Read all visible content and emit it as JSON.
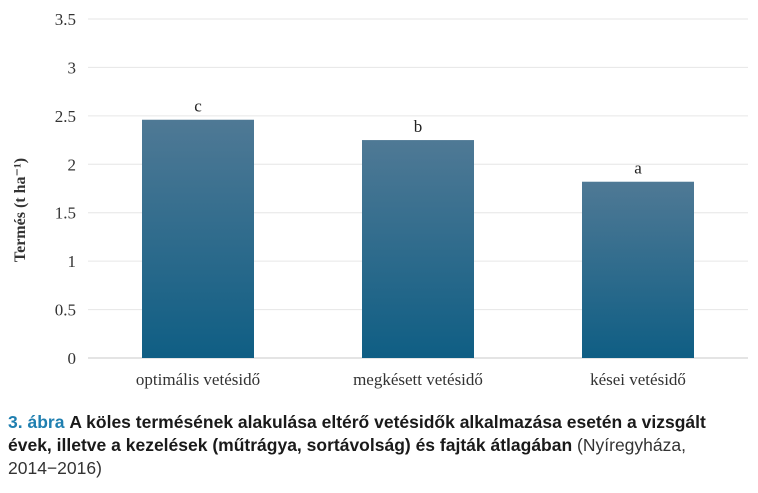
{
  "chart_data": {
    "type": "bar",
    "categories": [
      "optimális vetésidő",
      "megkésett vetésidő",
      "kései vetésidő"
    ],
    "values": [
      2.46,
      2.25,
      1.82
    ],
    "data_labels": [
      "c",
      "b",
      "a"
    ],
    "ylabel": "Termés (t ha⁻¹)",
    "ylim": [
      0,
      3.5
    ],
    "yticks": [
      "0",
      "0.5",
      "1",
      "1.5",
      "2",
      "2.5",
      "3",
      "3.5"
    ],
    "grid": "horizontal",
    "colors": {
      "bar_top": "#4f7995",
      "bar_bottom": "#0f5e84",
      "grid": "#e6e6e6",
      "axis": "#c8c8c8"
    }
  },
  "caption": {
    "number": "3. ábra",
    "title": "A köles termésének alakulása eltérő vetésidők alkalmazása esetén a vizsgált évek, illetve a kezelések (műtrágya, sortávolság) és fajták átlagában",
    "subtitle": "(Nyíregyháza, 2014−2016)"
  }
}
